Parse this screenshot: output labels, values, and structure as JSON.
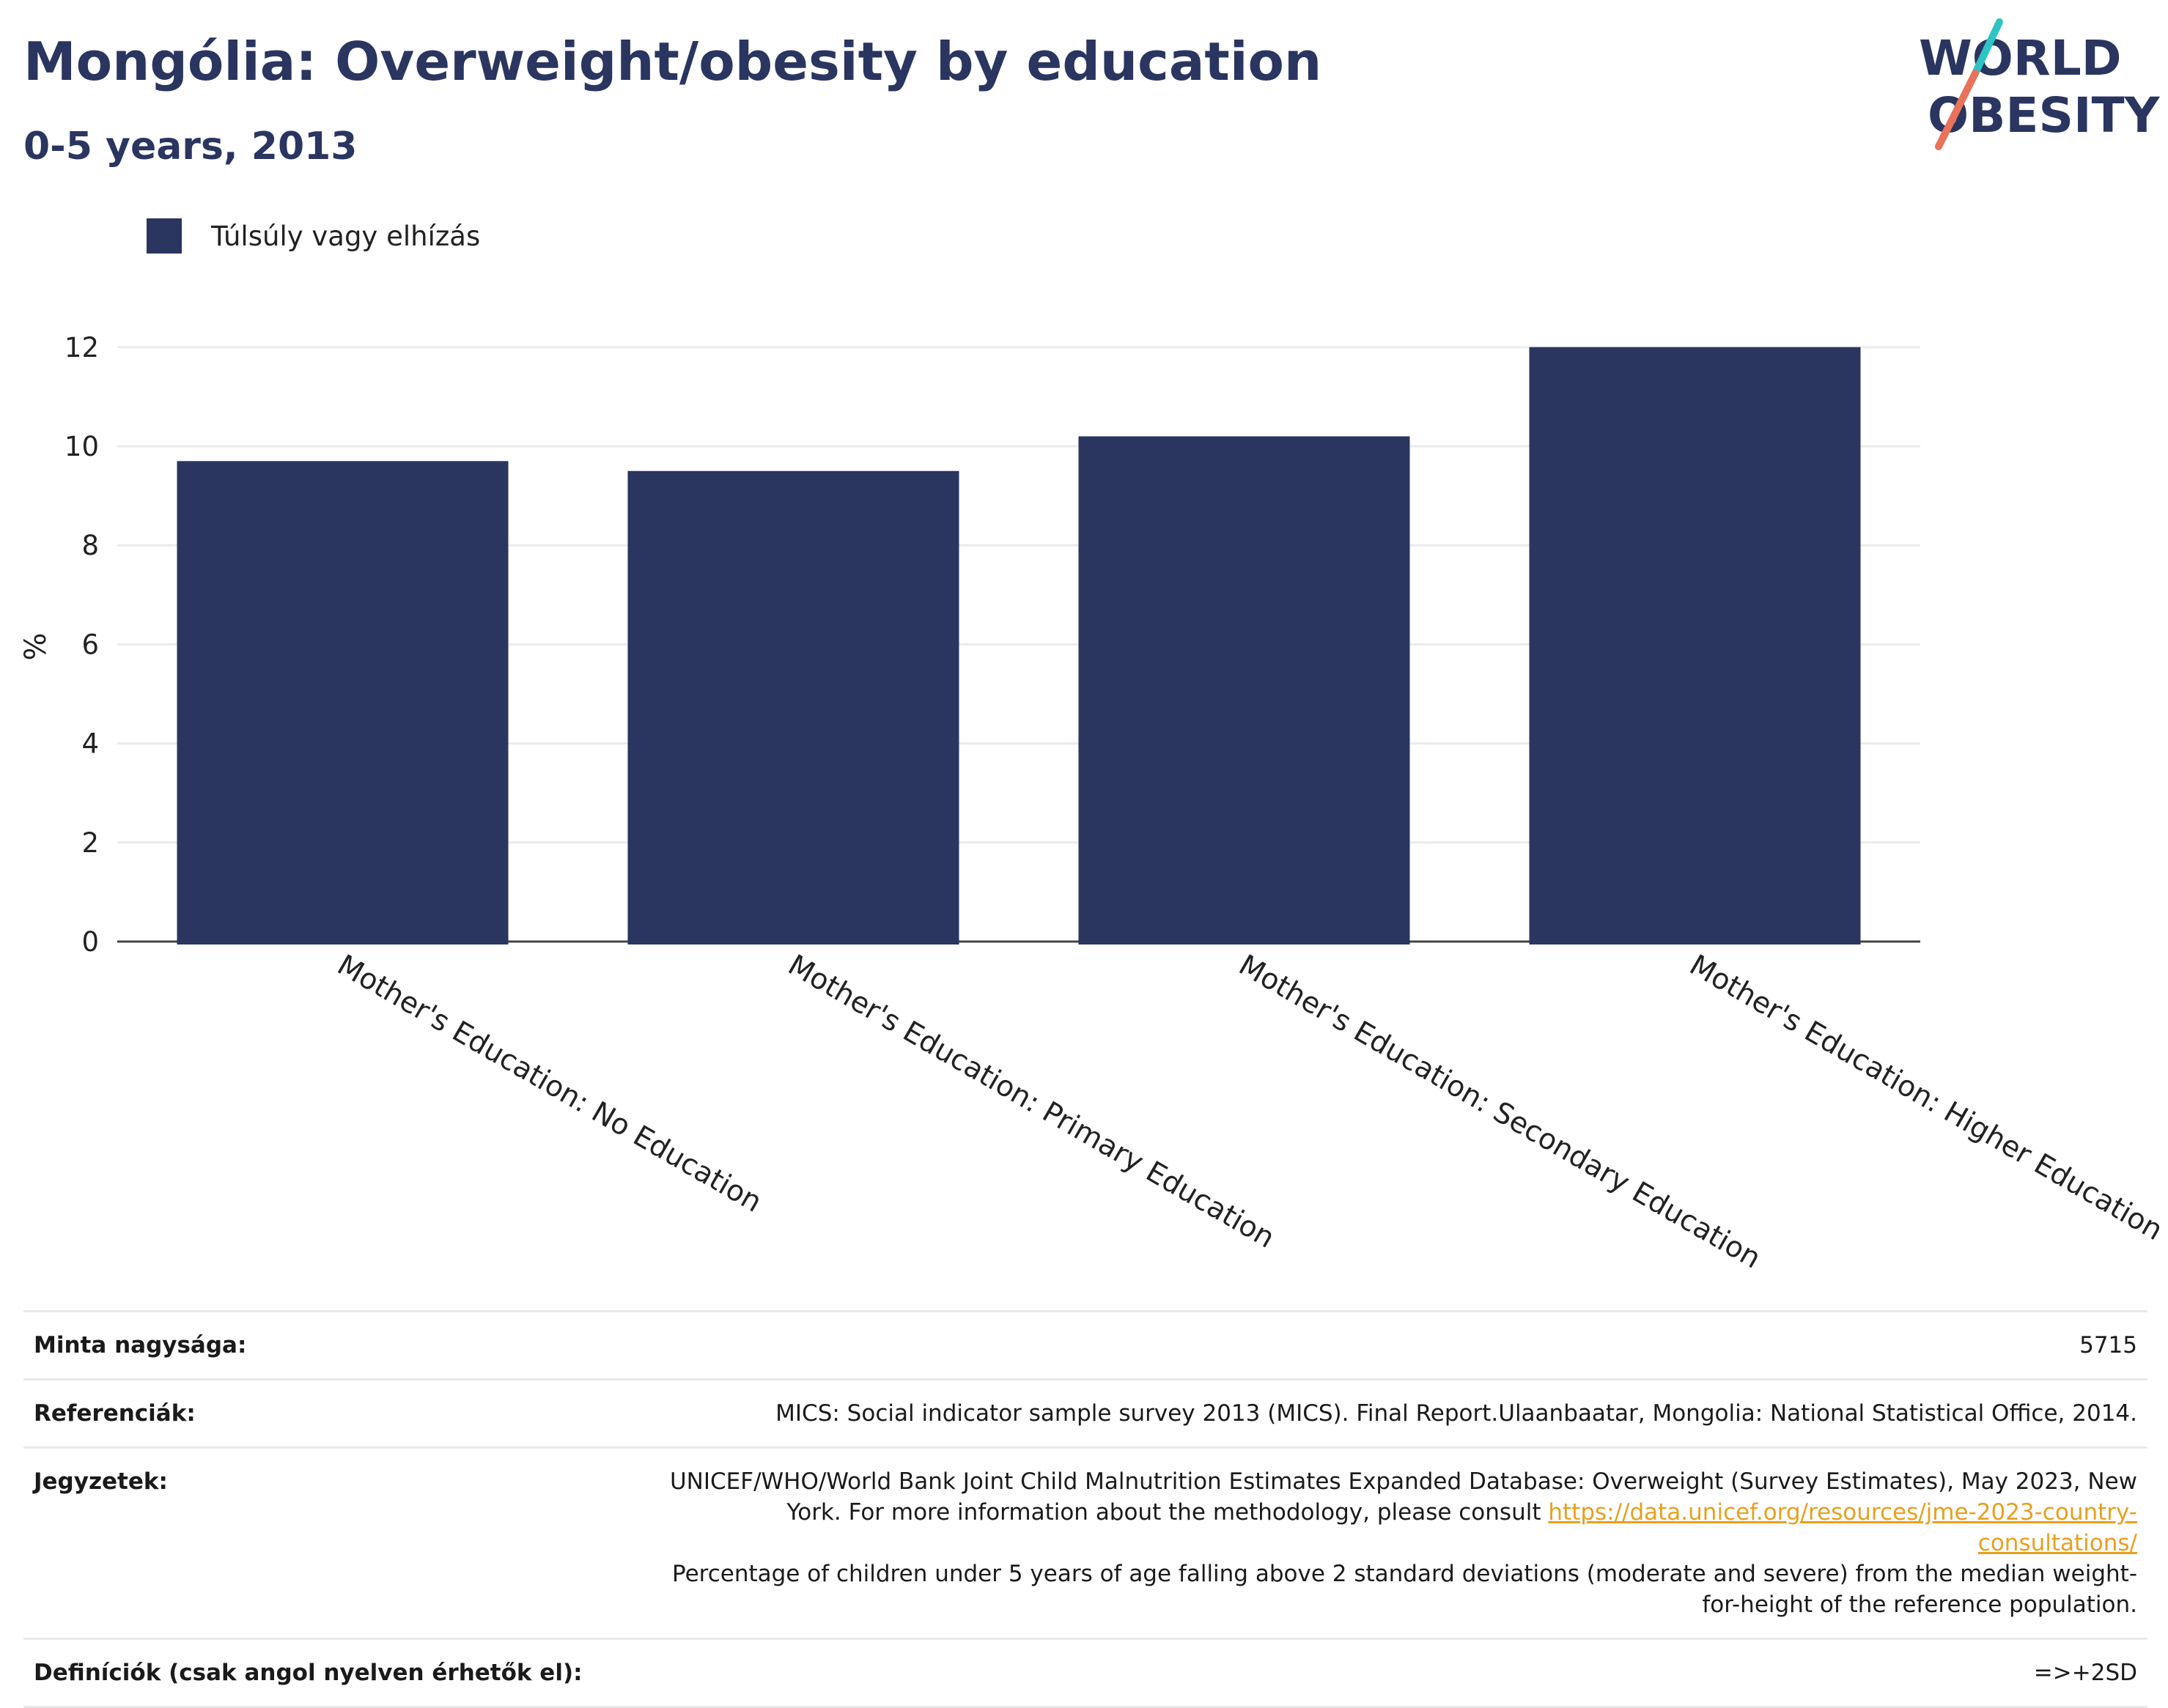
{
  "header": {
    "title": "Mongólia: Overweight/obesity by education",
    "subtitle": "0-5 years, 2013"
  },
  "logo": {
    "line1": "WORLD",
    "line2": "OBESITY",
    "accent_colors": [
      "#2ec4c4",
      "#e8735a"
    ]
  },
  "legend": {
    "label": "Túlsúly vagy elhízás",
    "color": "#2a3560"
  },
  "chart_data": {
    "type": "bar",
    "categories": [
      "Mother's Education: No Education",
      "Mother's Education: Primary Education",
      "Mother's Education: Secondary Education",
      "Mother's Education: Higher Education"
    ],
    "series": [
      {
        "name": "Túlsúly vagy elhízás",
        "values": [
          9.7,
          9.5,
          10.2,
          12.0
        ],
        "color": "#2a3560"
      }
    ],
    "ylabel": "%",
    "ylim": [
      0,
      12.5
    ],
    "yticks": [
      0,
      2,
      4,
      6,
      8,
      10,
      12
    ],
    "grid": true,
    "legend_position": "top-left"
  },
  "footer": {
    "sample_label": "Minta nagysága:",
    "sample_value": "5715",
    "references_label": "Referenciák:",
    "references_value": "MICS: Social indicator sample survey 2013 (MICS). Final Report.Ulaanbaatar, Mongolia: National Statistical Office, 2014.",
    "notes_label": "Jegyzetek:",
    "notes_text_1": "UNICEF/WHO/World Bank Joint Child Malnutrition Estimates Expanded Database: Overweight (Survey Estimates), May 2023, New York. For more information about the methodology, please consult",
    "notes_link": "https://data.unicef.org/resources/jme-2023-country-consultations/",
    "notes_text_2": "Percentage of children under 5 years of age falling above 2 standard deviations (moderate and severe) from the median weight-for-height of the reference population.",
    "definitions_label": "Definíciók (csak angol nyelven érhetők el):",
    "definitions_value": "=>+2SD"
  }
}
